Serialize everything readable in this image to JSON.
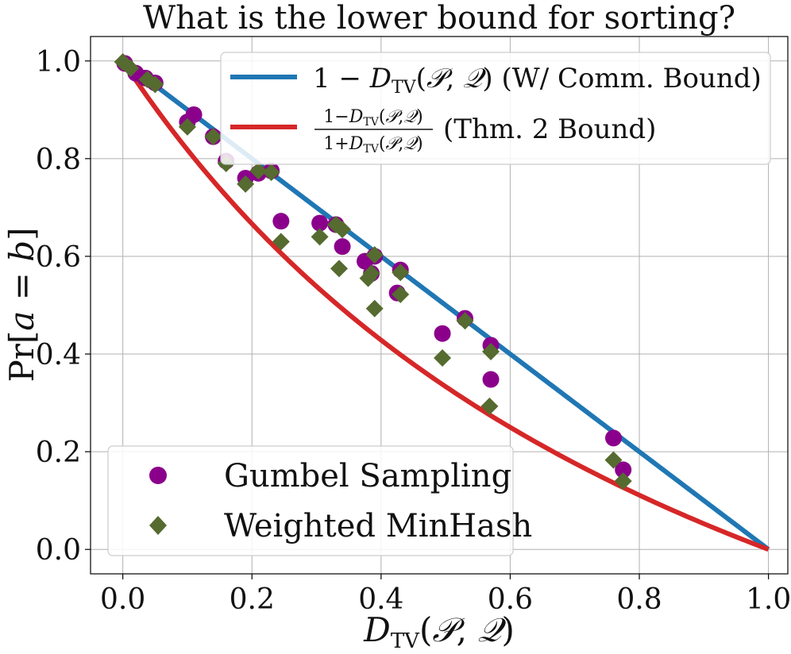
{
  "chart_data": {
    "type": "scatter",
    "title": "What is the lower bound for sorting?",
    "xlabel": "D_TV(P, Q)",
    "ylabel": "Pr[a = b]",
    "xlim": [
      -0.05,
      1.03
    ],
    "ylim": [
      -0.05,
      1.05
    ],
    "xticks": [
      "0.0",
      "0.2",
      "0.4",
      "0.6",
      "0.8",
      "1.0"
    ],
    "yticks": [
      "0.0",
      "0.2",
      "0.4",
      "0.6",
      "0.8",
      "1.0"
    ],
    "grid": true,
    "legend_lines": [
      {
        "name": "1 − D_TV(P, Q) (W/ Comm. Bound)",
        "color": "#1f77b4",
        "formula": "1-d"
      },
      {
        "name_num": "1−D_TV(P,Q)",
        "name_den": "1+D_TV(P,Q)",
        "name_suffix": "(Thm. 2 Bound)",
        "color": "#d62728",
        "formula": "(1-d)/(1+d)"
      }
    ],
    "series": [
      {
        "name": "Gumbel Sampling",
        "marker": "circle",
        "color": "#8b008b",
        "points": [
          [
            0.003,
            0.995
          ],
          [
            0.02,
            0.975
          ],
          [
            0.035,
            0.965
          ],
          [
            0.05,
            0.955
          ],
          [
            0.1,
            0.875
          ],
          [
            0.11,
            0.89
          ],
          [
            0.14,
            0.845
          ],
          [
            0.16,
            0.795
          ],
          [
            0.19,
            0.76
          ],
          [
            0.21,
            0.77
          ],
          [
            0.23,
            0.775
          ],
          [
            0.245,
            0.672
          ],
          [
            0.305,
            0.668
          ],
          [
            0.33,
            0.665
          ],
          [
            0.34,
            0.62
          ],
          [
            0.375,
            0.59
          ],
          [
            0.385,
            0.565
          ],
          [
            0.39,
            0.6
          ],
          [
            0.425,
            0.525
          ],
          [
            0.43,
            0.572
          ],
          [
            0.495,
            0.442
          ],
          [
            0.53,
            0.473
          ],
          [
            0.57,
            0.418
          ],
          [
            0.57,
            0.348
          ],
          [
            0.76,
            0.228
          ],
          [
            0.775,
            0.163
          ]
        ]
      },
      {
        "name": "Weighted MinHash",
        "marker": "diamond",
        "color": "#556b2f",
        "points": [
          [
            0.0,
            0.998
          ],
          [
            0.012,
            0.985
          ],
          [
            0.038,
            0.962
          ],
          [
            0.05,
            0.952
          ],
          [
            0.1,
            0.865
          ],
          [
            0.14,
            0.845
          ],
          [
            0.16,
            0.79
          ],
          [
            0.19,
            0.748
          ],
          [
            0.21,
            0.775
          ],
          [
            0.23,
            0.772
          ],
          [
            0.245,
            0.63
          ],
          [
            0.305,
            0.64
          ],
          [
            0.33,
            0.665
          ],
          [
            0.34,
            0.655
          ],
          [
            0.335,
            0.575
          ],
          [
            0.38,
            0.555
          ],
          [
            0.385,
            0.565
          ],
          [
            0.39,
            0.493
          ],
          [
            0.39,
            0.603
          ],
          [
            0.43,
            0.522
          ],
          [
            0.43,
            0.567
          ],
          [
            0.495,
            0.392
          ],
          [
            0.53,
            0.468
          ],
          [
            0.57,
            0.405
          ],
          [
            0.568,
            0.293
          ],
          [
            0.76,
            0.183
          ],
          [
            0.775,
            0.14
          ]
        ]
      }
    ]
  }
}
